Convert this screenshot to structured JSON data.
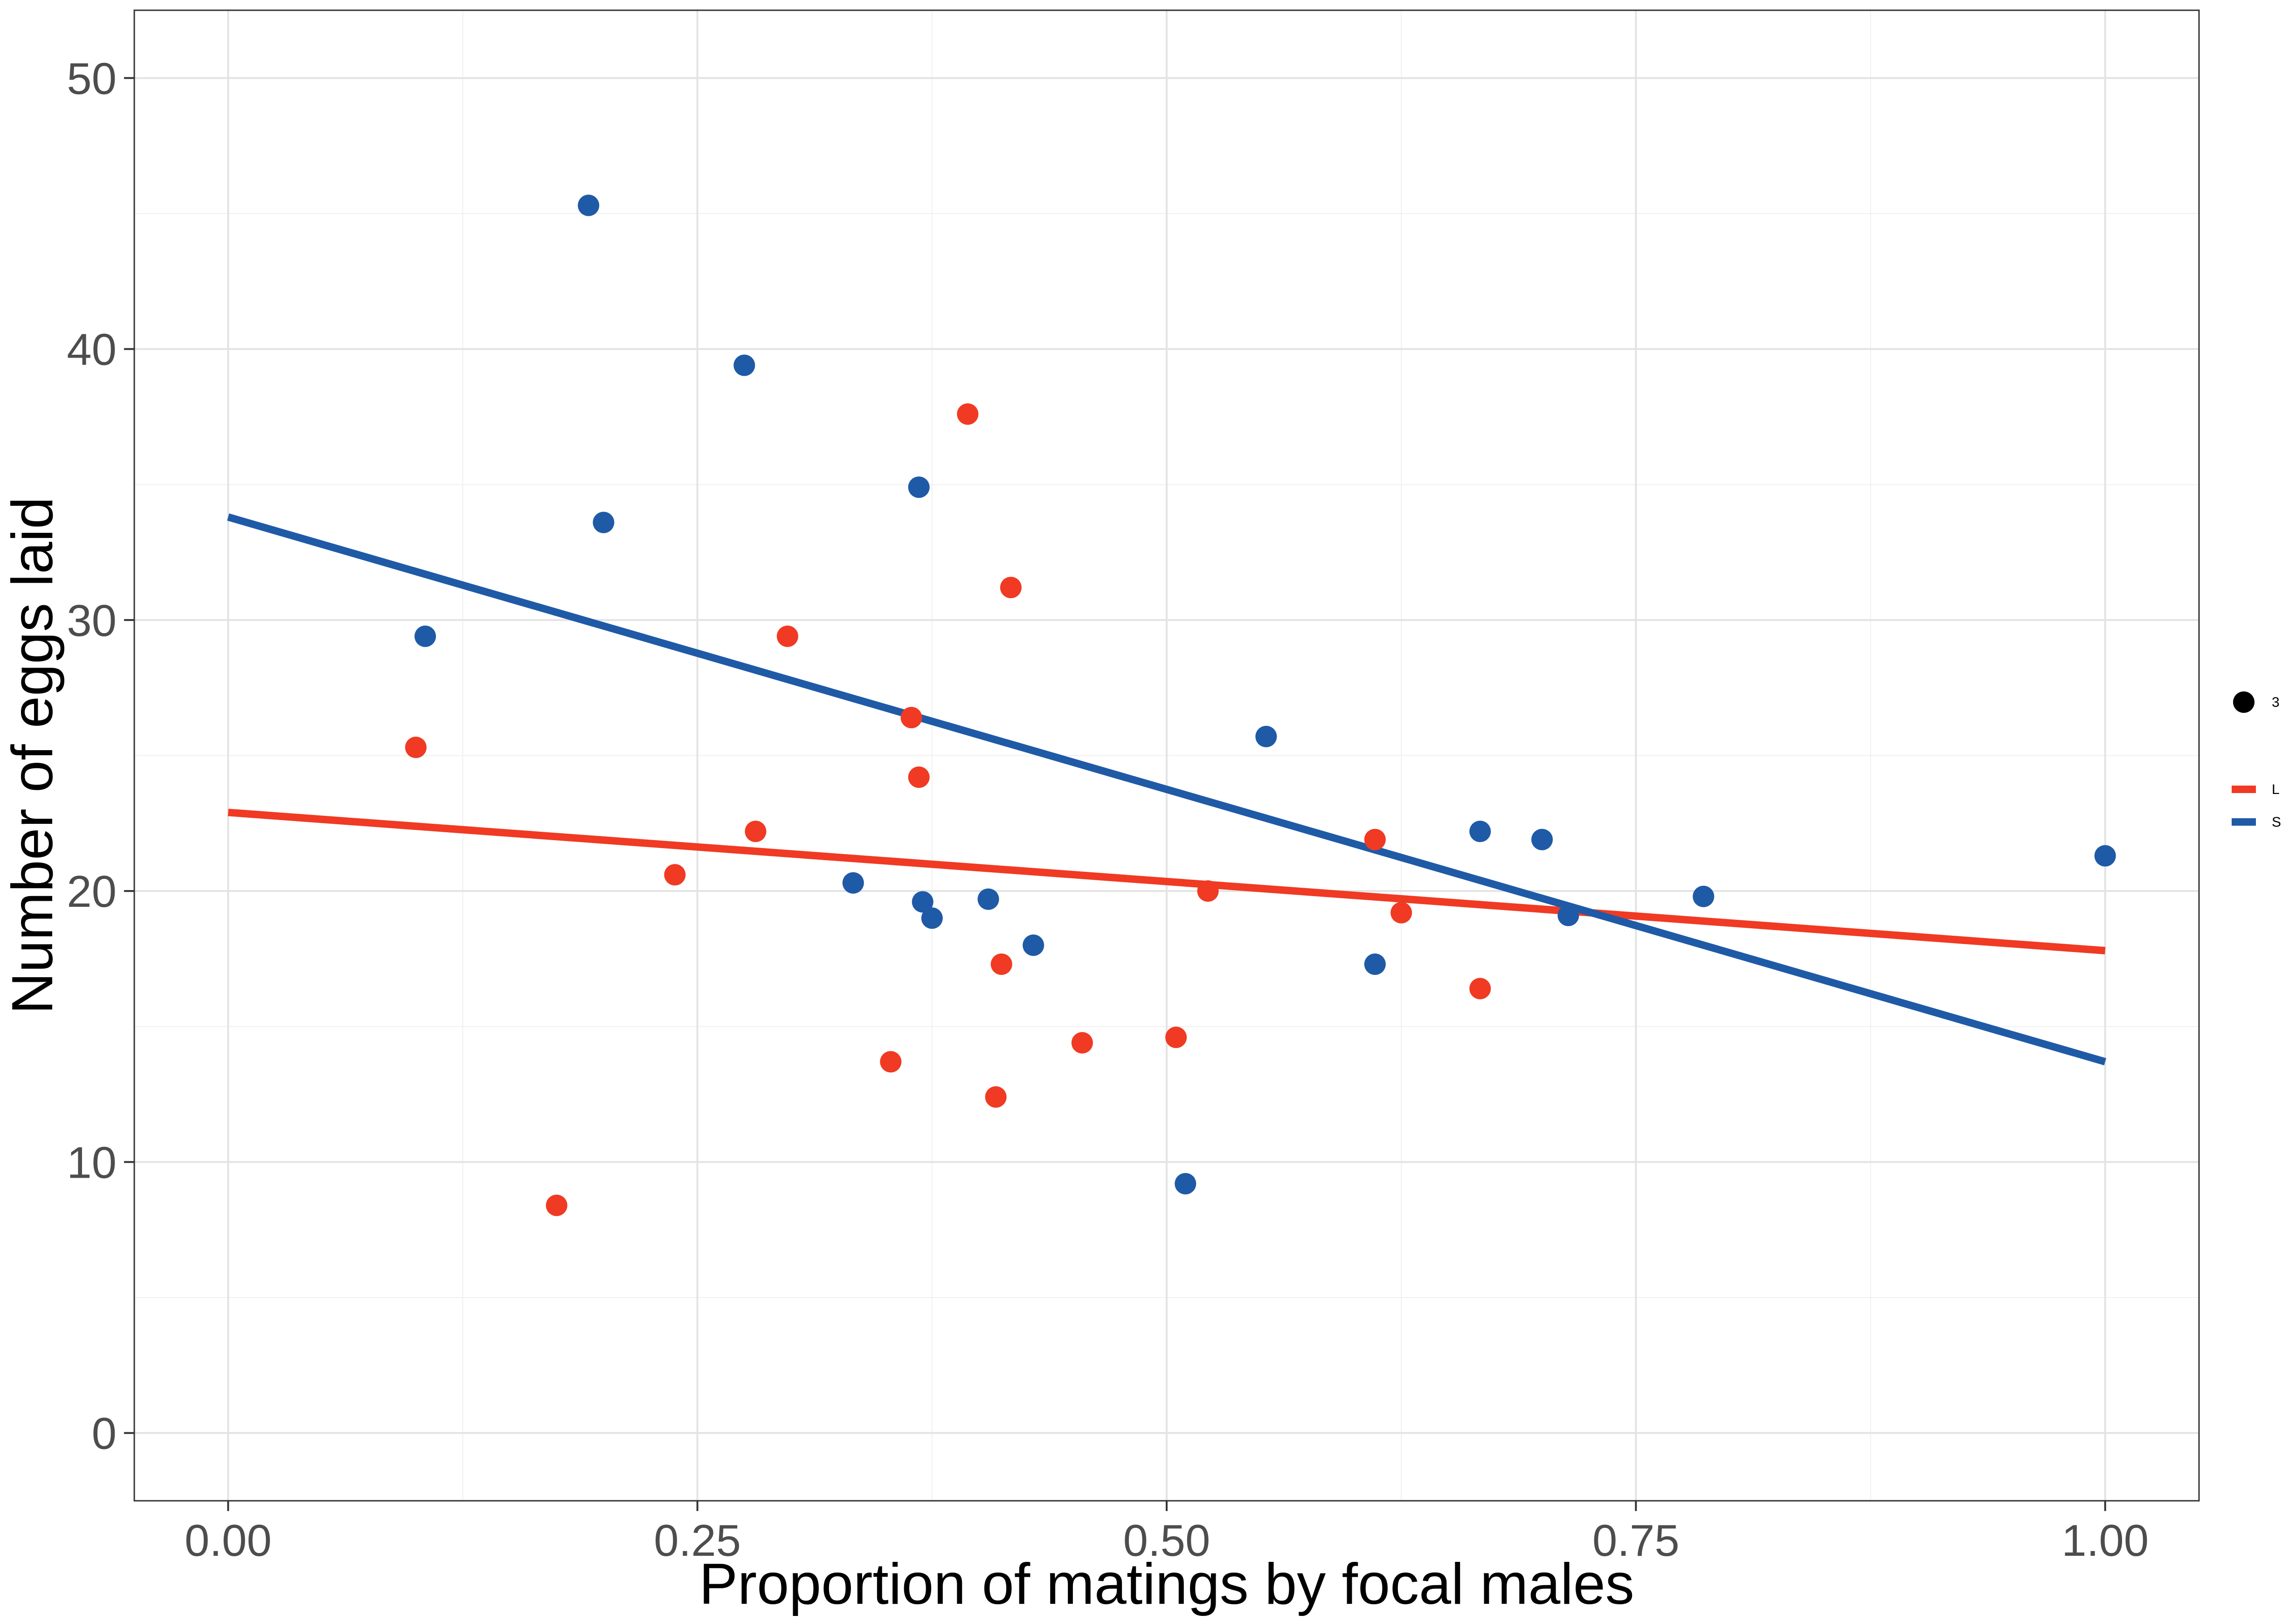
{
  "chart_data": {
    "type": "scatter",
    "title": "",
    "xlabel": "Proportion of matings by focal males",
    "ylabel": "Number of eggs laid",
    "xlim": [
      -0.05,
      1.05
    ],
    "ylim": [
      -2.5,
      52.5
    ],
    "x_ticks": [
      0,
      0.25,
      0.5,
      0.75,
      1
    ],
    "x_tick_labels": [
      "0.00",
      "0.25",
      "0.50",
      "0.75",
      "1.00"
    ],
    "y_ticks": [
      0,
      10,
      20,
      30,
      40,
      50
    ],
    "y_tick_labels": [
      "0",
      "10",
      "20",
      "30",
      "40",
      "50"
    ],
    "grid": true,
    "legend_position": "right",
    "legend": {
      "size_label": "3",
      "lines": [
        {
          "label": "L",
          "color": "#f03a23"
        },
        {
          "label": "S",
          "color": "#1f5aa6"
        }
      ]
    },
    "series": [
      {
        "name": "L",
        "color": "#f03a23",
        "points": [
          {
            "x": 0.1,
            "y": 25.3
          },
          {
            "x": 0.175,
            "y": 8.4
          },
          {
            "x": 0.238,
            "y": 20.6
          },
          {
            "x": 0.281,
            "y": 22.2
          },
          {
            "x": 0.298,
            "y": 29.4
          },
          {
            "x": 0.353,
            "y": 13.7
          },
          {
            "x": 0.364,
            "y": 26.4
          },
          {
            "x": 0.368,
            "y": 24.2
          },
          {
            "x": 0.394,
            "y": 37.6
          },
          {
            "x": 0.409,
            "y": 12.4
          },
          {
            "x": 0.412,
            "y": 17.3
          },
          {
            "x": 0.417,
            "y": 31.2
          },
          {
            "x": 0.455,
            "y": 14.4
          },
          {
            "x": 0.505,
            "y": 14.6
          },
          {
            "x": 0.522,
            "y": 20.0
          },
          {
            "x": 0.611,
            "y": 21.9
          },
          {
            "x": 0.625,
            "y": 19.2
          },
          {
            "x": 0.667,
            "y": 16.4
          }
        ],
        "fit": {
          "x": [
            0,
            1
          ],
          "y": [
            22.9,
            17.8
          ]
        }
      },
      {
        "name": "S",
        "color": "#1f5aa6",
        "points": [
          {
            "x": 0.105,
            "y": 29.4
          },
          {
            "x": 0.192,
            "y": 45.3
          },
          {
            "x": 0.2,
            "y": 33.6
          },
          {
            "x": 0.275,
            "y": 39.4
          },
          {
            "x": 0.333,
            "y": 20.3
          },
          {
            "x": 0.368,
            "y": 34.9
          },
          {
            "x": 0.37,
            "y": 19.6
          },
          {
            "x": 0.375,
            "y": 19.0
          },
          {
            "x": 0.405,
            "y": 19.7
          },
          {
            "x": 0.429,
            "y": 18.0
          },
          {
            "x": 0.51,
            "y": 9.2
          },
          {
            "x": 0.553,
            "y": 25.7
          },
          {
            "x": 0.611,
            "y": 17.3
          },
          {
            "x": 0.667,
            "y": 22.2
          },
          {
            "x": 0.7,
            "y": 21.9
          },
          {
            "x": 0.714,
            "y": 19.1
          },
          {
            "x": 0.786,
            "y": 19.8
          },
          {
            "x": 1.0,
            "y": 21.3
          }
        ],
        "fit": {
          "x": [
            0,
            1
          ],
          "y": [
            33.8,
            13.7
          ]
        }
      }
    ]
  }
}
